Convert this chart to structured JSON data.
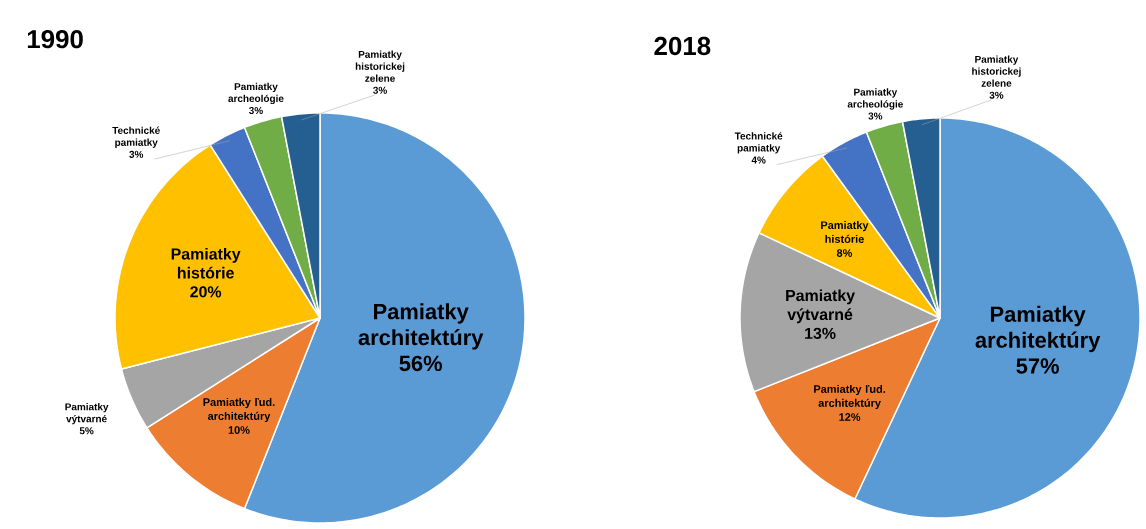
{
  "chart_data": [
    {
      "type": "pie",
      "title": "1990",
      "categories": [
        "Pamiatky architektúry",
        "Pamiatky ľud. architektúry",
        "Pamiatky výtvarné",
        "Pamiatky histórie",
        "Technické pamiatky",
        "Pamiatky archeológie",
        "Pamiatky historickej zelene"
      ],
      "values": [
        56,
        10,
        5,
        20,
        3,
        3,
        3
      ],
      "value_labels": [
        "56%",
        "10%",
        "5%",
        "20%",
        "3%",
        "3%",
        "3%"
      ],
      "colors": [
        "#5b9bd5",
        "#ed7d31",
        "#a5a5a5",
        "#ffc000",
        "#4472c4",
        "#70ad47",
        "#255e91"
      ]
    },
    {
      "type": "pie",
      "title": "2018",
      "categories": [
        "Pamiatky architektúry",
        "Pamiatky ľud. architektúry",
        "Pamiatky výtvarné",
        "Pamiatky histórie",
        "Technické pamiatky",
        "Pamiatky archeológie",
        "Pamiatky historickej zelene"
      ],
      "values": [
        57,
        12,
        13,
        8,
        4,
        3,
        3
      ],
      "value_labels": [
        "57%",
        "12%",
        "13%",
        "8%",
        "4%",
        "3%",
        "3%"
      ],
      "colors": [
        "#5b9bd5",
        "#ed7d31",
        "#a5a5a5",
        "#ffc000",
        "#4472c4",
        "#70ad47",
        "#255e91"
      ]
    }
  ]
}
